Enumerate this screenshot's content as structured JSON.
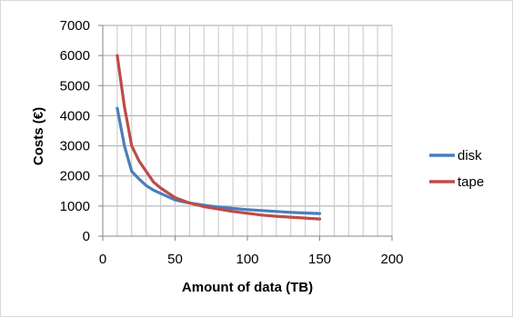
{
  "chart_data": {
    "type": "line",
    "title": "",
    "xlabel": "Amount of data (TB)",
    "ylabel": "Costs (€)",
    "xlim": [
      0,
      200
    ],
    "ylim": [
      0,
      7000
    ],
    "xticks": [
      0,
      50,
      100,
      150,
      200
    ],
    "yticks": [
      0,
      1000,
      2000,
      3000,
      4000,
      5000,
      6000,
      7000
    ],
    "xtick_labels": [
      "0",
      "50",
      "100",
      "150",
      "200"
    ],
    "ytick_labels": [
      "0",
      "1000",
      "2000",
      "3000",
      "4000",
      "5000",
      "6000",
      "7000"
    ],
    "grid": true,
    "legend_position": "right",
    "series": [
      {
        "name": "disk",
        "color": "#4a7ebb",
        "x": [
          10,
          15,
          20,
          25,
          30,
          35,
          40,
          50,
          60,
          70,
          80,
          90,
          100,
          110,
          120,
          130,
          140,
          150
        ],
        "y": [
          4250,
          3000,
          2150,
          1900,
          1680,
          1530,
          1420,
          1200,
          1100,
          1030,
          970,
          920,
          880,
          850,
          820,
          790,
          770,
          750
        ]
      },
      {
        "name": "tape",
        "color": "#be4b48",
        "x": [
          10,
          15,
          20,
          25,
          30,
          35,
          40,
          50,
          60,
          70,
          80,
          90,
          100,
          110,
          120,
          130,
          140,
          150
        ],
        "y": [
          6000,
          4300,
          3000,
          2500,
          2150,
          1800,
          1600,
          1280,
          1100,
          980,
          900,
          820,
          760,
          700,
          660,
          630,
          600,
          570
        ]
      }
    ]
  }
}
